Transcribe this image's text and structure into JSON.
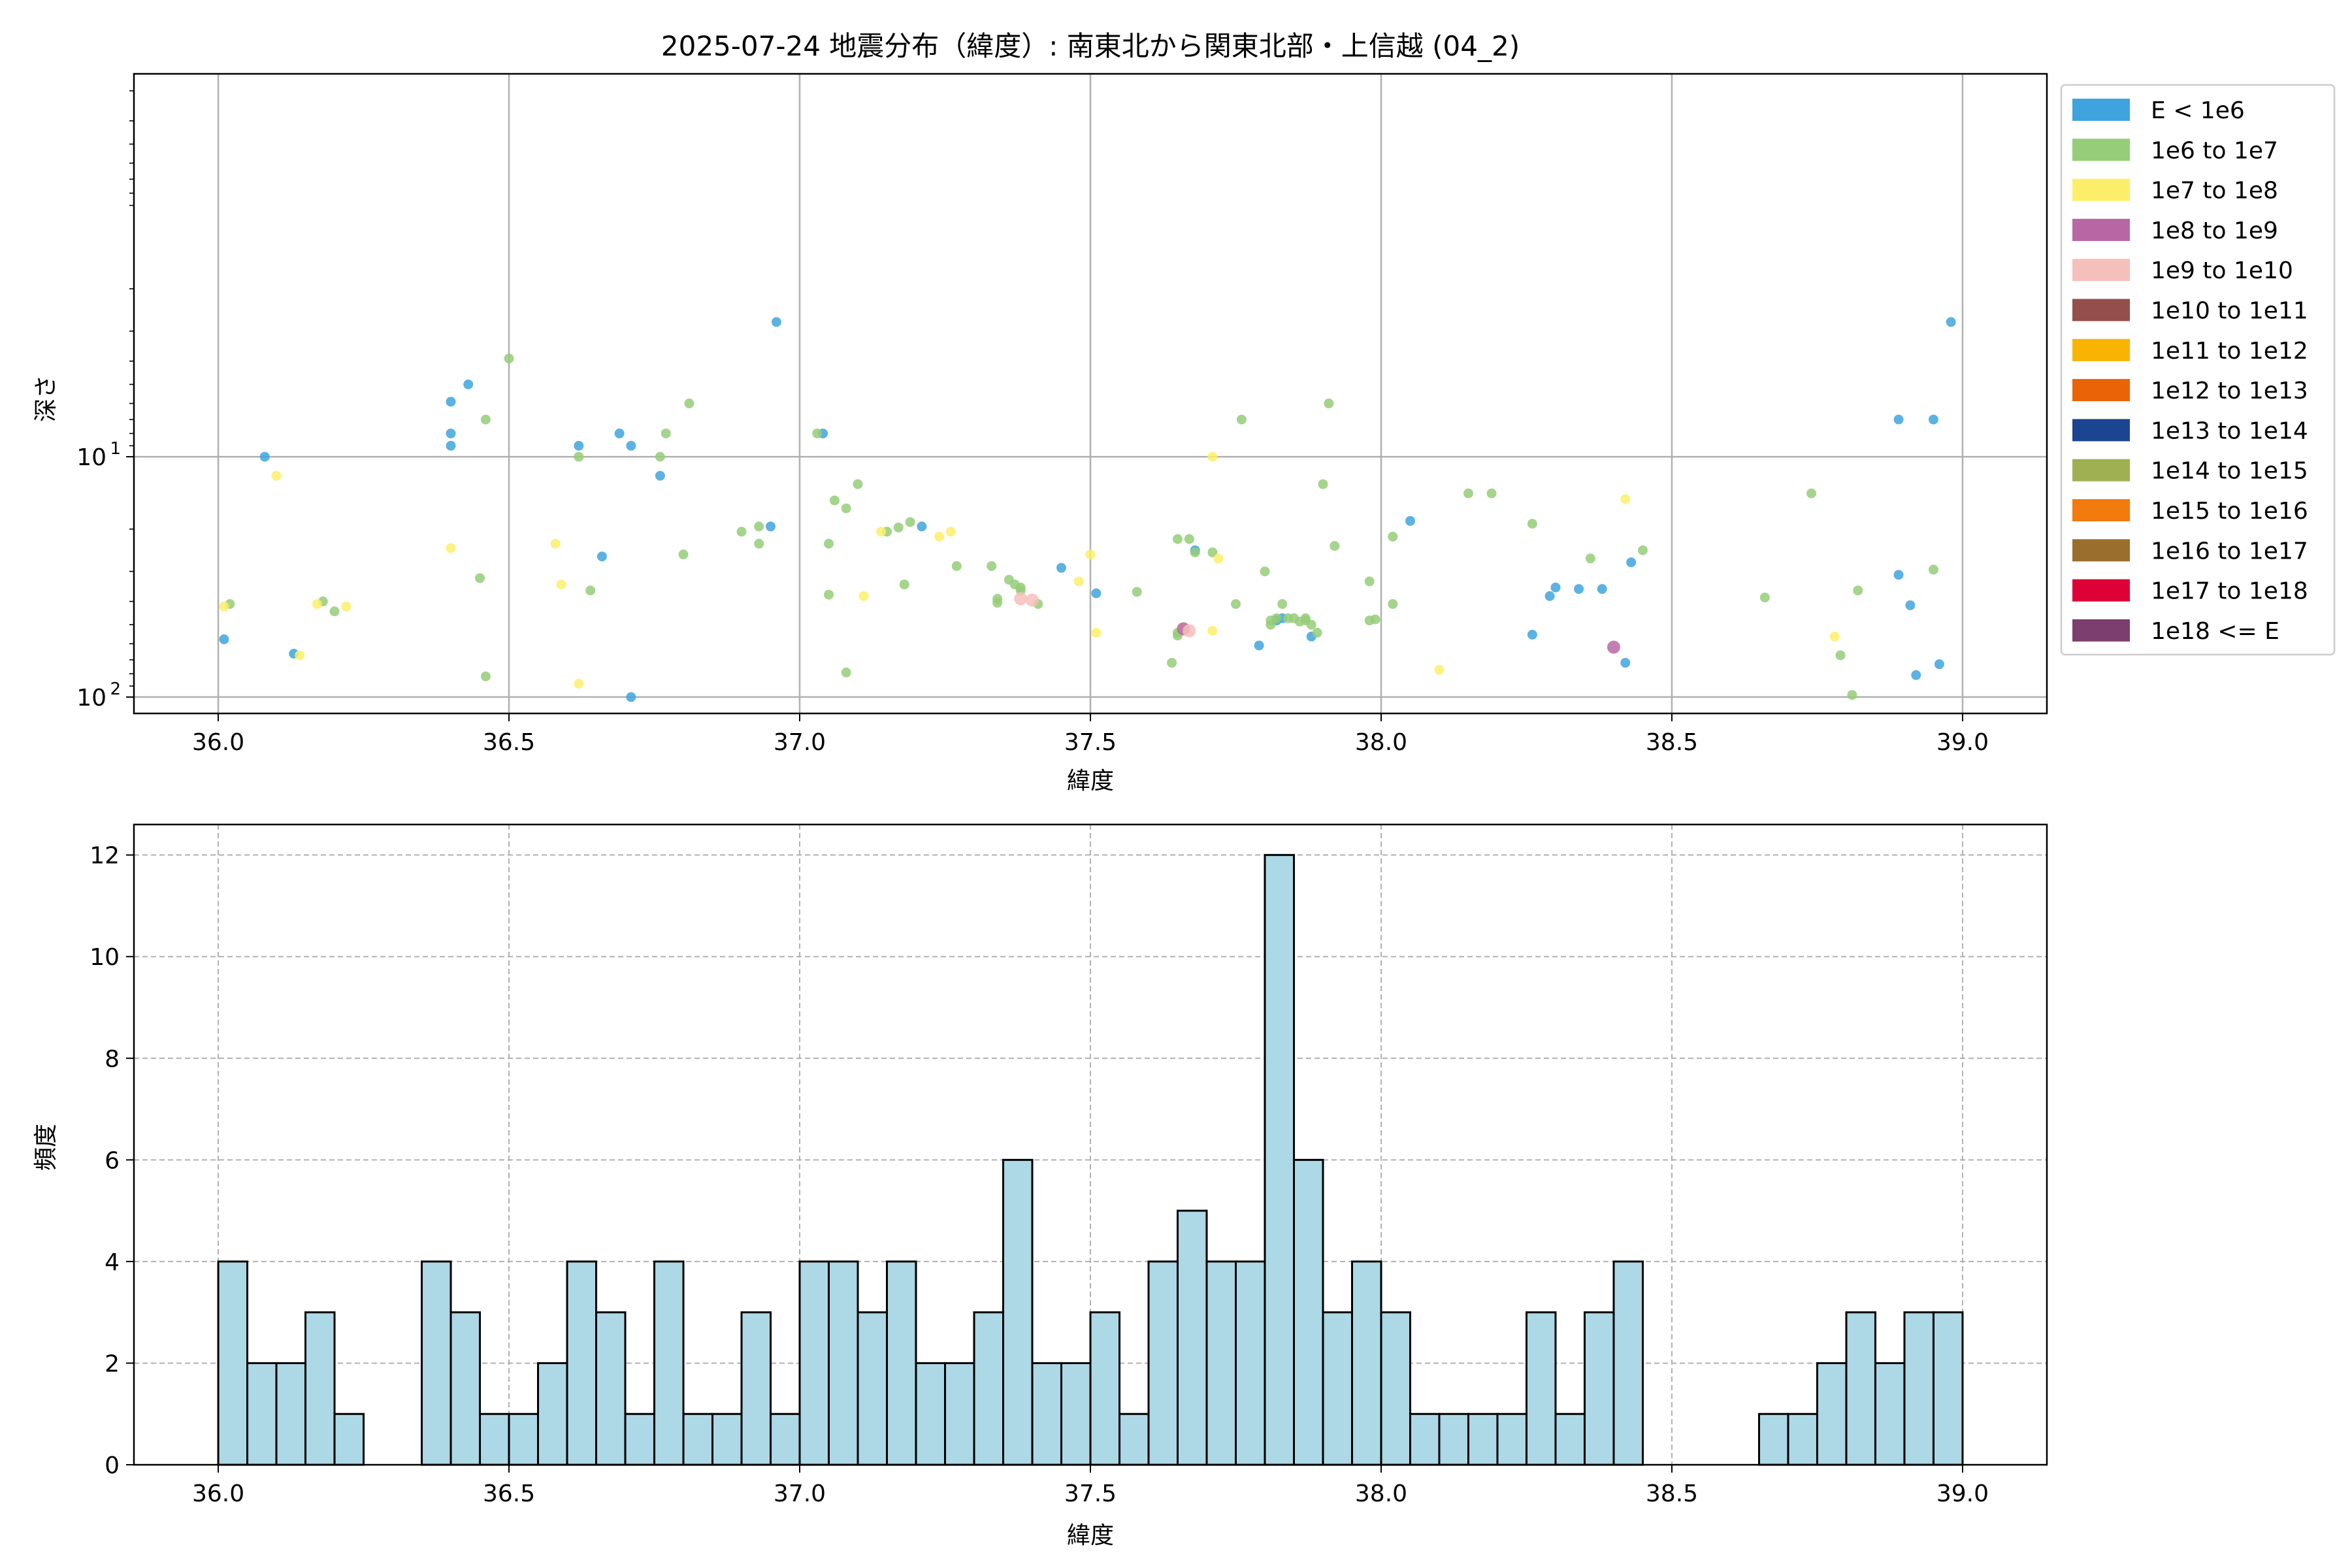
{
  "chart_data": [
    {
      "type": "scatter",
      "title": "2025-07-24 地震分布（緯度）: 南東北から関東北部・上信越 (04_2)",
      "xlabel": "緯度",
      "ylabel": "深さ",
      "xlim": [
        35.855,
        39.145
      ],
      "ylim": [
        117,
        0.255
      ],
      "yscale": "log",
      "yaxis_inverted": true,
      "x_ticks": [
        36.0,
        36.5,
        37.0,
        37.5,
        38.0,
        38.5,
        39.0
      ],
      "y_ticks": [
        {
          "value": 10,
          "label": "10",
          "exp": "1"
        },
        {
          "value": 100,
          "label": "10",
          "exp": "2"
        }
      ],
      "grid": true,
      "legend_position": "outside-right",
      "legend": [
        {
          "label": "E < 1e6",
          "color": "#3fa4dd"
        },
        {
          "label": "1e6 to 1e7",
          "color": "#95cd78"
        },
        {
          "label": "1e7 to 1e8",
          "color": "#fdee6a"
        },
        {
          "label": "1e8 to 1e9",
          "color": "#b867a4"
        },
        {
          "label": "1e9 to 1e10",
          "color": "#f5c0bb"
        },
        {
          "label": "1e10 to 1e11",
          "color": "#944f4c"
        },
        {
          "label": "1e11 to 1e12",
          "color": "#f8b400"
        },
        {
          "label": "1e12 to 1e13",
          "color": "#eb6307"
        },
        {
          "label": "1e13 to 1e14",
          "color": "#1c4591"
        },
        {
          "label": "1e14 to 1e15",
          "color": "#9eb052"
        },
        {
          "label": "1e15 to 1e16",
          "color": "#f37a0c"
        },
        {
          "label": "1e16 to 1e17",
          "color": "#9a6e2c"
        },
        {
          "label": "1e17 to 1e18",
          "color": "#dd0137"
        },
        {
          "label": "1e18 <= E",
          "color": "#7c3e6e"
        }
      ],
      "series": [
        {
          "class": 0,
          "points": [
            [
              36.01,
              57.5
            ],
            [
              36.08,
              10
            ],
            [
              36.13,
              66
            ],
            [
              36.4,
              5.9
            ],
            [
              36.4,
              8
            ],
            [
              36.4,
              9
            ],
            [
              36.43,
              5
            ],
            [
              36.62,
              9
            ],
            [
              36.66,
              26
            ],
            [
              36.69,
              8
            ],
            [
              36.71,
              9
            ],
            [
              36.71,
              100
            ],
            [
              36.76,
              12
            ],
            [
              36.95,
              19.5
            ],
            [
              36.96,
              2.75
            ],
            [
              37.04,
              8
            ],
            [
              37.21,
              19.5
            ],
            [
              37.45,
              29
            ],
            [
              37.51,
              37
            ],
            [
              37.68,
              24.5
            ],
            [
              37.79,
              61
            ],
            [
              37.82,
              48
            ],
            [
              37.83,
              47
            ],
            [
              37.88,
              56
            ],
            [
              38.05,
              18.5
            ],
            [
              38.26,
              55
            ],
            [
              38.29,
              38
            ],
            [
              38.3,
              35
            ],
            [
              38.34,
              35.5
            ],
            [
              38.38,
              35.5
            ],
            [
              38.42,
              72
            ],
            [
              38.43,
              27.5
            ],
            [
              38.89,
              7
            ],
            [
              38.89,
              31
            ],
            [
              38.91,
              41.5
            ],
            [
              38.92,
              81
            ],
            [
              38.95,
              7
            ],
            [
              38.96,
              73
            ],
            [
              38.98,
              2.75
            ]
          ]
        },
        {
          "class": 1,
          "points": [
            [
              36.02,
              41
            ],
            [
              36.18,
              40
            ],
            [
              36.2,
              44
            ],
            [
              36.45,
              32
            ],
            [
              36.46,
              7
            ],
            [
              36.46,
              82
            ],
            [
              36.5,
              3.9
            ],
            [
              36.62,
              10
            ],
            [
              36.64,
              36
            ],
            [
              36.76,
              10
            ],
            [
              36.77,
              8
            ],
            [
              36.8,
              25.5
            ],
            [
              36.81,
              6
            ],
            [
              36.9,
              20.5
            ],
            [
              36.93,
              23
            ],
            [
              36.93,
              19.5
            ],
            [
              37.03,
              8
            ],
            [
              37.05,
              37.5
            ],
            [
              37.05,
              23
            ],
            [
              37.06,
              15.2
            ],
            [
              37.08,
              16.4
            ],
            [
              37.08,
              79
            ],
            [
              37.1,
              13
            ],
            [
              37.15,
              20.5
            ],
            [
              37.17,
              19.7
            ],
            [
              37.18,
              34
            ],
            [
              37.19,
              18.7
            ],
            [
              37.27,
              28.5
            ],
            [
              37.33,
              28.5
            ],
            [
              37.34,
              39
            ],
            [
              37.34,
              40.5
            ],
            [
              37.36,
              32.5
            ],
            [
              37.37,
              34
            ],
            [
              37.38,
              36
            ],
            [
              37.38,
              35
            ],
            [
              37.41,
              41
            ],
            [
              37.58,
              36.5
            ],
            [
              37.64,
              72
            ],
            [
              37.65,
              22
            ],
            [
              37.65,
              54
            ],
            [
              37.65,
              55.5
            ],
            [
              37.67,
              22
            ],
            [
              37.68,
              25
            ],
            [
              37.71,
              25
            ],
            [
              37.75,
              41
            ],
            [
              37.76,
              7
            ],
            [
              37.8,
              30
            ],
            [
              37.81,
              48
            ],
            [
              37.81,
              50
            ],
            [
              37.82,
              47
            ],
            [
              37.83,
              41
            ],
            [
              37.84,
              47
            ],
            [
              37.85,
              47
            ],
            [
              37.86,
              48.5
            ],
            [
              37.87,
              47
            ],
            [
              37.87,
              48
            ],
            [
              37.88,
              50
            ],
            [
              37.89,
              54
            ],
            [
              37.9,
              13
            ],
            [
              37.91,
              6
            ],
            [
              37.92,
              23.5
            ],
            [
              37.98,
              48
            ],
            [
              37.99,
              47.5
            ],
            [
              37.98,
              33
            ],
            [
              38.02,
              41
            ],
            [
              38.02,
              21.5
            ],
            [
              38.15,
              14.2
            ],
            [
              38.19,
              14.2
            ],
            [
              38.26,
              19
            ],
            [
              38.36,
              26.5
            ],
            [
              38.45,
              24.5
            ],
            [
              38.66,
              38.5
            ],
            [
              38.74,
              14.2
            ],
            [
              38.79,
              67
            ],
            [
              38.81,
              98
            ],
            [
              38.82,
              36
            ],
            [
              38.95,
              29.5
            ]
          ]
        },
        {
          "class": 2,
          "points": [
            [
              36.01,
              42
            ],
            [
              36.1,
              12
            ],
            [
              36.14,
              67
            ],
            [
              36.17,
              41
            ],
            [
              36.22,
              42
            ],
            [
              36.4,
              24
            ],
            [
              36.58,
              23
            ],
            [
              36.59,
              34
            ],
            [
              36.62,
              88
            ],
            [
              37.11,
              38
            ],
            [
              37.14,
              20.5
            ],
            [
              37.24,
              21.5
            ],
            [
              37.26,
              20.5
            ],
            [
              37.48,
              33
            ],
            [
              37.5,
              25.5
            ],
            [
              37.51,
              54
            ],
            [
              37.66,
              52
            ],
            [
              37.71,
              53
            ],
            [
              37.71,
              10
            ],
            [
              37.72,
              26.5
            ],
            [
              38.1,
              77
            ],
            [
              38.42,
              15
            ],
            [
              38.78,
              56
            ]
          ]
        },
        {
          "class": 3,
          "points": [
            [
              37.66,
              52
            ],
            [
              38.4,
              62
            ]
          ]
        },
        {
          "class": 4,
          "points": [
            [
              37.38,
              39
            ],
            [
              37.4,
              39.5
            ],
            [
              37.67,
              53
            ]
          ]
        }
      ]
    },
    {
      "type": "histogram",
      "title": "",
      "xlabel": "緯度",
      "ylabel": "頻度",
      "xlim": [
        35.855,
        39.145
      ],
      "ylim": [
        0,
        12.6
      ],
      "x_ticks": [
        36.0,
        36.5,
        37.0,
        37.5,
        38.0,
        38.5,
        39.0
      ],
      "y_ticks": [
        0,
        2,
        4,
        6,
        8,
        10,
        12
      ],
      "grid": true,
      "bin_start": 36.0,
      "bin_width": 0.05,
      "counts": [
        4,
        2,
        2,
        3,
        1,
        0,
        0,
        4,
        3,
        1,
        1,
        2,
        4,
        3,
        1,
        4,
        1,
        1,
        3,
        1,
        4,
        4,
        3,
        4,
        2,
        2,
        3,
        6,
        2,
        2,
        3,
        1,
        4,
        5,
        4,
        4,
        12,
        6,
        3,
        4,
        3,
        1,
        1,
        1,
        1,
        3,
        1,
        3,
        4,
        0,
        0,
        0,
        0,
        1,
        1,
        2,
        3,
        2,
        3,
        3
      ]
    }
  ]
}
